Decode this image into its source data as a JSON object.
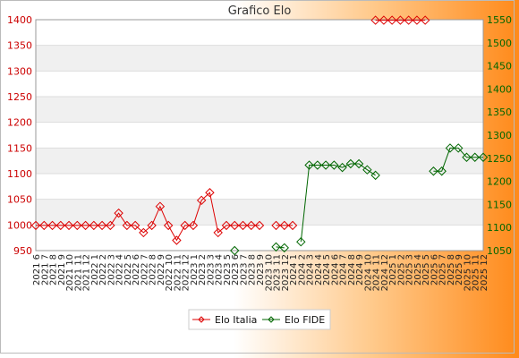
{
  "chart_data": {
    "type": "line",
    "title": "Grafico Elo",
    "categories": [
      "2021 6",
      "2021 7",
      "2021 8",
      "2021 9",
      "2021 10",
      "2021 11",
      "2021 12",
      "2022 1",
      "2022 2",
      "2022 3",
      "2022 4",
      "2022 5",
      "2022 6",
      "2022 7",
      "2022 8",
      "2022 9",
      "2022 10",
      "2022 11",
      "2022 12",
      "2023 1",
      "2023 2",
      "2023 3",
      "2023 4",
      "2023 5",
      "2023 6",
      "2023 7",
      "2023 8",
      "2023 9",
      "2023 10",
      "2023 11",
      "2023 12",
      "2024 1",
      "2024 2",
      "2024 3",
      "2024 4",
      "2024 5",
      "2024 6",
      "2024 7",
      "2024 8",
      "2024 9",
      "2024 10",
      "2024 11",
      "2024 12",
      "2025 1",
      "2025 2",
      "2025 3",
      "2025 4",
      "2025 5",
      "2025 6",
      "2025 7",
      "2025 8",
      "2025 9",
      "2025 10",
      "2025 11",
      "2025 12"
    ],
    "y_left": {
      "min": 950,
      "max": 1400,
      "ticks": [
        950,
        1000,
        1050,
        1100,
        1150,
        1200,
        1250,
        1300,
        1350,
        1400
      ],
      "color": "#cc0000"
    },
    "y_right": {
      "min": 1050,
      "max": 1550,
      "ticks": [
        1050,
        1100,
        1150,
        1200,
        1250,
        1300,
        1350,
        1400,
        1450,
        1500,
        1550
      ],
      "color": "#006600"
    },
    "grid": true,
    "legend_position": "bottom",
    "series": [
      {
        "name": "Elo Italia",
        "axis": "left",
        "color": "#dd0000",
        "values": [
          999,
          999,
          999,
          999,
          999,
          999,
          999,
          999,
          999,
          999,
          1023,
          999,
          999,
          985,
          999,
          1036,
          999,
          970,
          999,
          999,
          1048,
          1063,
          985,
          999,
          999,
          999,
          999,
          999,
          null,
          999,
          999,
          999,
          null,
          null,
          null,
          null,
          null,
          null,
          null,
          null,
          null,
          1399,
          1399,
          1399,
          1399,
          1399,
          1399,
          1399,
          null,
          null,
          null,
          null,
          null,
          null,
          null
        ]
      },
      {
        "name": "Elo FIDE",
        "axis": "right",
        "color": "#006600",
        "values": [
          null,
          null,
          null,
          null,
          null,
          null,
          null,
          null,
          null,
          null,
          null,
          null,
          null,
          null,
          null,
          null,
          null,
          null,
          null,
          null,
          null,
          null,
          null,
          null,
          1050,
          null,
          null,
          null,
          null,
          1058,
          1056,
          null,
          1069,
          1235,
          1235,
          1235,
          1235,
          1230,
          1238,
          1238,
          1225,
          1213,
          null,
          null,
          null,
          null,
          null,
          null,
          1222,
          1222,
          1272,
          1272,
          1252,
          1252,
          1252
        ]
      }
    ]
  }
}
